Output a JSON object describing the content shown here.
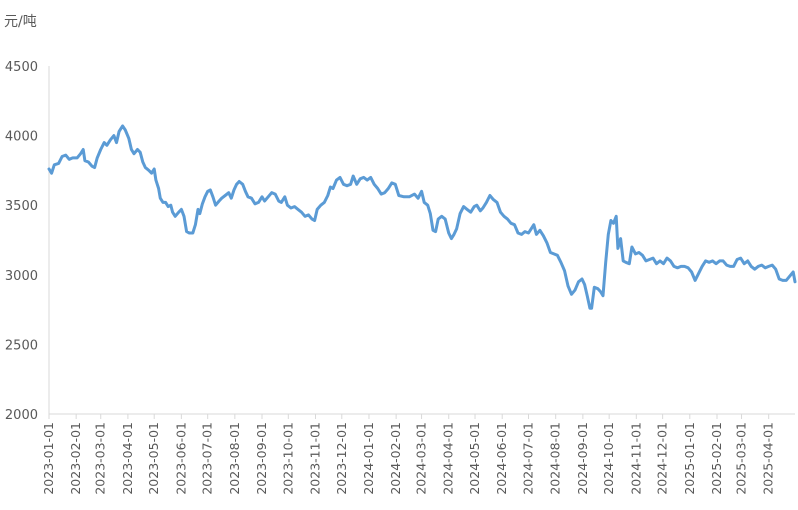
{
  "chart_data": {
    "type": "line",
    "title": "",
    "xlabel": "",
    "ylabel": "元/吨",
    "ylim": [
      2000,
      4500
    ],
    "y_ticks": [
      "4500",
      "4000",
      "3500",
      "3000",
      "2500",
      "2000"
    ],
    "y_tick_values": [
      4500,
      4000,
      3500,
      3000,
      2500,
      2000
    ],
    "x_ticks": [
      "2023-01-01",
      "2023-02-01",
      "2023-03-01",
      "2023-04-01",
      "2023-05-01",
      "2023-06-01",
      "2023-07-01",
      "2023-08-01",
      "2023-09-01",
      "2023-10-01",
      "2023-11-01",
      "2023-12-01",
      "2024-01-01",
      "2024-02-01",
      "2024-03-01",
      "2024-04-01",
      "2024-05-01",
      "2024-06-01",
      "2024-07-01",
      "2024-08-01",
      "2024-09-01",
      "2024-10-01",
      "2024-11-01",
      "2024-12-01",
      "2025-01-01",
      "2025-02-01",
      "2025-03-01",
      "2025-04-01"
    ],
    "x_range": [
      "2023-01-01",
      "2025-05-01"
    ],
    "grid": false,
    "legend": "none",
    "series": [
      {
        "color": "#5b9bd5",
        "points": [
          [
            "2023-01-01",
            3760
          ],
          [
            "2023-01-04",
            3730
          ],
          [
            "2023-01-07",
            3790
          ],
          [
            "2023-01-12",
            3800
          ],
          [
            "2023-01-16",
            3850
          ],
          [
            "2023-01-20",
            3860
          ],
          [
            "2023-01-24",
            3830
          ],
          [
            "2023-01-28",
            3840
          ],
          [
            "2023-02-02",
            3840
          ],
          [
            "2023-02-06",
            3870
          ],
          [
            "2023-02-09",
            3900
          ],
          [
            "2023-02-11",
            3820
          ],
          [
            "2023-02-15",
            3810
          ],
          [
            "2023-02-19",
            3780
          ],
          [
            "2023-02-22",
            3770
          ],
          [
            "2023-02-25",
            3840
          ],
          [
            "2023-03-01",
            3900
          ],
          [
            "2023-03-05",
            3950
          ],
          [
            "2023-03-08",
            3930
          ],
          [
            "2023-03-12",
            3970
          ],
          [
            "2023-03-16",
            4000
          ],
          [
            "2023-03-19",
            3950
          ],
          [
            "2023-03-22",
            4030
          ],
          [
            "2023-03-26",
            4070
          ],
          [
            "2023-03-29",
            4040
          ],
          [
            "2023-04-02",
            3980
          ],
          [
            "2023-04-05",
            3900
          ],
          [
            "2023-04-08",
            3870
          ],
          [
            "2023-04-12",
            3900
          ],
          [
            "2023-04-15",
            3880
          ],
          [
            "2023-04-18",
            3810
          ],
          [
            "2023-04-21",
            3770
          ],
          [
            "2023-04-25",
            3750
          ],
          [
            "2023-04-28",
            3730
          ],
          [
            "2023-05-01",
            3760
          ],
          [
            "2023-05-03",
            3680
          ],
          [
            "2023-05-06",
            3620
          ],
          [
            "2023-05-08",
            3550
          ],
          [
            "2023-05-11",
            3520
          ],
          [
            "2023-05-14",
            3520
          ],
          [
            "2023-05-17",
            3490
          ],
          [
            "2023-05-20",
            3500
          ],
          [
            "2023-05-22",
            3450
          ],
          [
            "2023-05-25",
            3420
          ],
          [
            "2023-05-29",
            3450
          ],
          [
            "2023-06-01",
            3470
          ],
          [
            "2023-06-04",
            3420
          ],
          [
            "2023-06-07",
            3310
          ],
          [
            "2023-06-10",
            3300
          ],
          [
            "2023-06-14",
            3300
          ],
          [
            "2023-06-17",
            3360
          ],
          [
            "2023-06-20",
            3470
          ],
          [
            "2023-06-22",
            3440
          ],
          [
            "2023-06-25",
            3510
          ],
          [
            "2023-06-28",
            3560
          ],
          [
            "2023-07-01",
            3600
          ],
          [
            "2023-07-04",
            3610
          ],
          [
            "2023-07-07",
            3560
          ],
          [
            "2023-07-10",
            3500
          ],
          [
            "2023-07-14",
            3530
          ],
          [
            "2023-07-17",
            3550
          ],
          [
            "2023-07-21",
            3570
          ],
          [
            "2023-07-25",
            3590
          ],
          [
            "2023-07-28",
            3550
          ],
          [
            "2023-07-31",
            3610
          ],
          [
            "2023-08-03",
            3650
          ],
          [
            "2023-08-06",
            3670
          ],
          [
            "2023-08-10",
            3650
          ],
          [
            "2023-08-13",
            3600
          ],
          [
            "2023-08-16",
            3560
          ],
          [
            "2023-08-20",
            3550
          ],
          [
            "2023-08-24",
            3510
          ],
          [
            "2023-08-28",
            3520
          ],
          [
            "2023-09-01",
            3560
          ],
          [
            "2023-09-04",
            3530
          ],
          [
            "2023-09-08",
            3560
          ],
          [
            "2023-09-12",
            3590
          ],
          [
            "2023-09-16",
            3580
          ],
          [
            "2023-09-20",
            3530
          ],
          [
            "2023-09-23",
            3520
          ],
          [
            "2023-09-27",
            3560
          ],
          [
            "2023-09-30",
            3500
          ],
          [
            "2023-10-04",
            3480
          ],
          [
            "2023-10-08",
            3490
          ],
          [
            "2023-10-12",
            3470
          ],
          [
            "2023-10-16",
            3450
          ],
          [
            "2023-10-20",
            3420
          ],
          [
            "2023-10-24",
            3430
          ],
          [
            "2023-10-28",
            3400
          ],
          [
            "2023-10-31",
            3390
          ],
          [
            "2023-11-03",
            3470
          ],
          [
            "2023-11-07",
            3500
          ],
          [
            "2023-11-11",
            3520
          ],
          [
            "2023-11-15",
            3570
          ],
          [
            "2023-11-18",
            3630
          ],
          [
            "2023-11-21",
            3620
          ],
          [
            "2023-11-25",
            3680
          ],
          [
            "2023-11-29",
            3700
          ],
          [
            "2023-12-03",
            3650
          ],
          [
            "2023-12-07",
            3640
          ],
          [
            "2023-12-11",
            3650
          ],
          [
            "2023-12-14",
            3710
          ],
          [
            "2023-12-18",
            3650
          ],
          [
            "2023-12-22",
            3690
          ],
          [
            "2023-12-26",
            3700
          ],
          [
            "2023-12-30",
            3680
          ],
          [
            "2024-01-03",
            3700
          ],
          [
            "2024-01-07",
            3650
          ],
          [
            "2024-01-11",
            3620
          ],
          [
            "2024-01-15",
            3580
          ],
          [
            "2024-01-19",
            3590
          ],
          [
            "2024-01-23",
            3620
          ],
          [
            "2024-01-27",
            3660
          ],
          [
            "2024-01-31",
            3650
          ],
          [
            "2024-02-04",
            3570
          ],
          [
            "2024-02-10",
            3560
          ],
          [
            "2024-02-16",
            3560
          ],
          [
            "2024-02-22",
            3580
          ],
          [
            "2024-02-26",
            3550
          ],
          [
            "2024-03-01",
            3600
          ],
          [
            "2024-03-04",
            3520
          ],
          [
            "2024-03-08",
            3500
          ],
          [
            "2024-03-11",
            3440
          ],
          [
            "2024-03-14",
            3320
          ],
          [
            "2024-03-17",
            3310
          ],
          [
            "2024-03-20",
            3400
          ],
          [
            "2024-03-24",
            3420
          ],
          [
            "2024-03-28",
            3400
          ],
          [
            "2024-04-01",
            3300
          ],
          [
            "2024-04-04",
            3260
          ],
          [
            "2024-04-07",
            3290
          ],
          [
            "2024-04-10",
            3330
          ],
          [
            "2024-04-14",
            3440
          ],
          [
            "2024-04-18",
            3490
          ],
          [
            "2024-04-22",
            3470
          ],
          [
            "2024-04-26",
            3450
          ],
          [
            "2024-04-30",
            3490
          ],
          [
            "2024-05-03",
            3500
          ],
          [
            "2024-05-07",
            3460
          ],
          [
            "2024-05-10",
            3480
          ],
          [
            "2024-05-14",
            3520
          ],
          [
            "2024-05-18",
            3570
          ],
          [
            "2024-05-22",
            3540
          ],
          [
            "2024-05-26",
            3520
          ],
          [
            "2024-05-30",
            3450
          ],
          [
            "2024-06-03",
            3420
          ],
          [
            "2024-06-07",
            3400
          ],
          [
            "2024-06-11",
            3370
          ],
          [
            "2024-06-15",
            3360
          ],
          [
            "2024-06-19",
            3300
          ],
          [
            "2024-06-23",
            3290
          ],
          [
            "2024-06-27",
            3310
          ],
          [
            "2024-07-01",
            3300
          ],
          [
            "2024-07-04",
            3330
          ],
          [
            "2024-07-07",
            3360
          ],
          [
            "2024-07-10",
            3290
          ],
          [
            "2024-07-14",
            3320
          ],
          [
            "2024-07-18",
            3280
          ],
          [
            "2024-07-22",
            3230
          ],
          [
            "2024-07-26",
            3160
          ],
          [
            "2024-07-30",
            3150
          ],
          [
            "2024-08-03",
            3140
          ],
          [
            "2024-08-07",
            3090
          ],
          [
            "2024-08-11",
            3030
          ],
          [
            "2024-08-15",
            2920
          ],
          [
            "2024-08-19",
            2860
          ],
          [
            "2024-08-23",
            2890
          ],
          [
            "2024-08-27",
            2950
          ],
          [
            "2024-08-31",
            2970
          ],
          [
            "2024-09-03",
            2930
          ],
          [
            "2024-09-06",
            2850
          ],
          [
            "2024-09-09",
            2760
          ],
          [
            "2024-09-11",
            2760
          ],
          [
            "2024-09-14",
            2910
          ],
          [
            "2024-09-18",
            2900
          ],
          [
            "2024-09-21",
            2880
          ],
          [
            "2024-09-24",
            2850
          ],
          [
            "2024-09-27",
            3090
          ],
          [
            "2024-09-30",
            3290
          ],
          [
            "2024-10-03",
            3390
          ],
          [
            "2024-10-06",
            3370
          ],
          [
            "2024-10-09",
            3420
          ],
          [
            "2024-10-11",
            3190
          ],
          [
            "2024-10-14",
            3260
          ],
          [
            "2024-10-17",
            3100
          ],
          [
            "2024-10-20",
            3090
          ],
          [
            "2024-10-24",
            3080
          ],
          [
            "2024-10-27",
            3200
          ],
          [
            "2024-10-31",
            3150
          ],
          [
            "2024-11-04",
            3160
          ],
          [
            "2024-11-08",
            3140
          ],
          [
            "2024-11-12",
            3100
          ],
          [
            "2024-11-16",
            3110
          ],
          [
            "2024-11-20",
            3120
          ],
          [
            "2024-11-24",
            3080
          ],
          [
            "2024-11-28",
            3100
          ],
          [
            "2024-12-02",
            3080
          ],
          [
            "2024-12-06",
            3120
          ],
          [
            "2024-12-10",
            3100
          ],
          [
            "2024-12-14",
            3060
          ],
          [
            "2024-12-18",
            3050
          ],
          [
            "2024-12-22",
            3060
          ],
          [
            "2024-12-26",
            3060
          ],
          [
            "2024-12-30",
            3050
          ],
          [
            "2025-01-03",
            3020
          ],
          [
            "2025-01-07",
            2960
          ],
          [
            "2025-01-11",
            3010
          ],
          [
            "2025-01-15",
            3060
          ],
          [
            "2025-01-19",
            3100
          ],
          [
            "2025-01-23",
            3090
          ],
          [
            "2025-01-27",
            3100
          ],
          [
            "2025-01-31",
            3080
          ],
          [
            "2025-02-04",
            3100
          ],
          [
            "2025-02-08",
            3100
          ],
          [
            "2025-02-12",
            3070
          ],
          [
            "2025-02-16",
            3060
          ],
          [
            "2025-02-20",
            3060
          ],
          [
            "2025-02-24",
            3110
          ],
          [
            "2025-02-28",
            3120
          ],
          [
            "2025-03-04",
            3080
          ],
          [
            "2025-03-08",
            3100
          ],
          [
            "2025-03-12",
            3060
          ],
          [
            "2025-03-16",
            3040
          ],
          [
            "2025-03-20",
            3060
          ],
          [
            "2025-03-24",
            3070
          ],
          [
            "2025-03-28",
            3050
          ],
          [
            "2025-04-01",
            3060
          ],
          [
            "2025-04-05",
            3070
          ],
          [
            "2025-04-09",
            3040
          ],
          [
            "2025-04-13",
            2970
          ],
          [
            "2025-04-17",
            2960
          ],
          [
            "2025-04-21",
            2960
          ],
          [
            "2025-04-25",
            2990
          ],
          [
            "2025-04-29",
            3020
          ],
          [
            "2025-05-01",
            2950
          ]
        ]
      }
    ]
  }
}
